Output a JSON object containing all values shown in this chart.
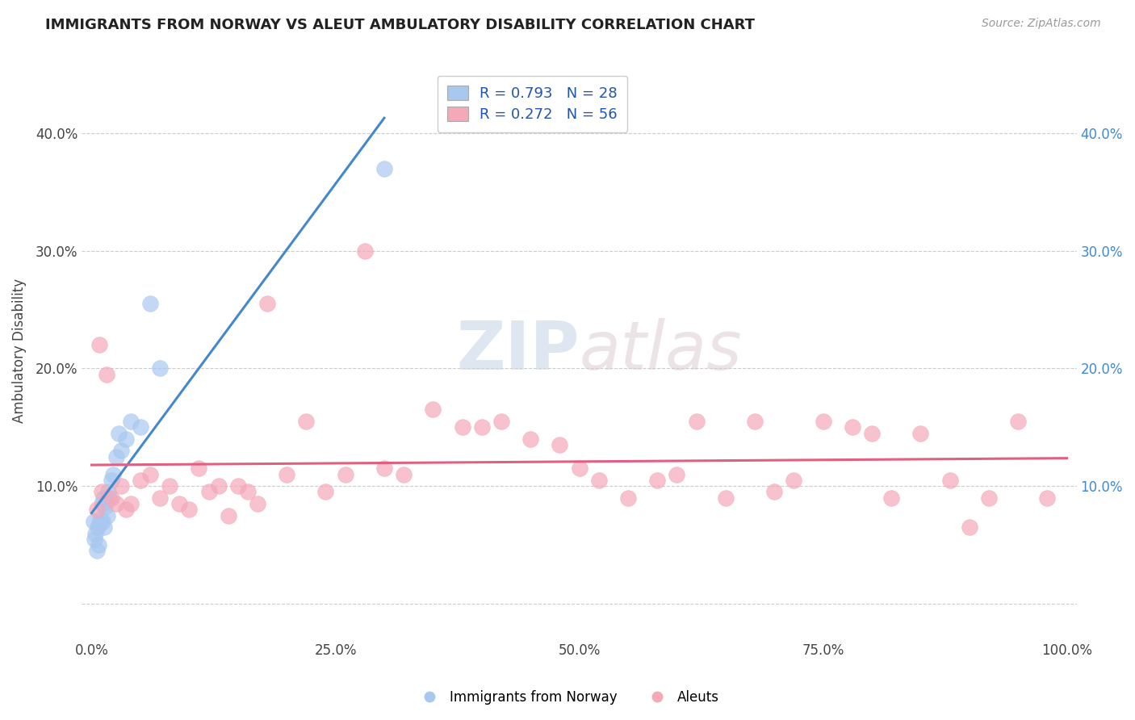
{
  "title": "IMMIGRANTS FROM NORWAY VS ALEUT AMBULATORY DISABILITY CORRELATION CHART",
  "source": "Source: ZipAtlas.com",
  "ylabel": "Ambulatory Disability",
  "legend_labels": [
    "Immigrants from Norway",
    "Aleuts"
  ],
  "norway_R": 0.793,
  "norway_N": 28,
  "aleut_R": 0.272,
  "aleut_N": 56,
  "norway_color": "#a8c8f0",
  "aleut_color": "#f4a8b8",
  "norway_line_color": "#4488cc",
  "aleut_line_color": "#e06080",
  "watermark_zip": "ZIP",
  "watermark_atlas": "atlas",
  "norway_x": [
    0.2,
    0.3,
    0.4,
    0.5,
    0.6,
    0.7,
    0.8,
    0.9,
    1.0,
    1.1,
    1.2,
    1.3,
    1.4,
    1.5,
    1.6,
    1.7,
    1.8,
    2.0,
    2.2,
    2.5,
    2.8,
    3.0,
    3.5,
    4.0,
    5.0,
    6.0,
    7.0,
    30.0
  ],
  "norway_y": [
    7.0,
    5.5,
    6.0,
    4.5,
    6.5,
    5.0,
    6.8,
    7.2,
    8.5,
    7.0,
    9.0,
    6.5,
    8.2,
    8.8,
    7.5,
    9.5,
    9.0,
    10.5,
    11.0,
    12.5,
    14.5,
    13.0,
    14.0,
    15.5,
    15.0,
    25.5,
    20.0,
    37.0
  ],
  "aleut_x": [
    0.5,
    0.8,
    1.0,
    1.5,
    2.0,
    2.5,
    3.0,
    3.5,
    4.0,
    5.0,
    6.0,
    7.0,
    8.0,
    9.0,
    10.0,
    11.0,
    12.0,
    13.0,
    14.0,
    15.0,
    16.0,
    17.0,
    18.0,
    20.0,
    22.0,
    24.0,
    26.0,
    28.0,
    30.0,
    32.0,
    35.0,
    38.0,
    40.0,
    42.0,
    45.0,
    48.0,
    50.0,
    52.0,
    55.0,
    58.0,
    60.0,
    62.0,
    65.0,
    68.0,
    70.0,
    72.0,
    75.0,
    78.0,
    80.0,
    82.0,
    85.0,
    88.0,
    90.0,
    92.0,
    95.0,
    98.0
  ],
  "aleut_y": [
    8.0,
    22.0,
    9.5,
    19.5,
    9.0,
    8.5,
    10.0,
    8.0,
    8.5,
    10.5,
    11.0,
    9.0,
    10.0,
    8.5,
    8.0,
    11.5,
    9.5,
    10.0,
    7.5,
    10.0,
    9.5,
    8.5,
    25.5,
    11.0,
    15.5,
    9.5,
    11.0,
    30.0,
    11.5,
    11.0,
    16.5,
    15.0,
    15.0,
    15.5,
    14.0,
    13.5,
    11.5,
    10.5,
    9.0,
    10.5,
    11.0,
    15.5,
    9.0,
    15.5,
    9.5,
    10.5,
    15.5,
    15.0,
    14.5,
    9.0,
    14.5,
    10.5,
    6.5,
    9.0,
    15.5,
    9.0
  ],
  "xlim": [
    -1,
    101
  ],
  "ylim": [
    -3,
    46
  ],
  "ytick_vals": [
    0,
    10,
    20,
    30,
    40
  ],
  "ytick_labels_left": [
    "",
    "10.0%",
    "20.0%",
    "30.0%",
    "40.0%"
  ],
  "ytick_labels_right": [
    "",
    "10.0%",
    "20.0%",
    "30.0%",
    "40.0%"
  ],
  "xtick_vals": [
    0,
    25,
    50,
    75,
    100
  ],
  "xtick_labels": [
    "0.0%",
    "25.0%",
    "50.0%",
    "75.0%",
    "100.0%"
  ],
  "grid_color": "#cccccc",
  "bg_color": "#ffffff",
  "norway_trend_x": [
    0,
    30
  ],
  "aleut_trend_x": [
    0,
    100
  ]
}
